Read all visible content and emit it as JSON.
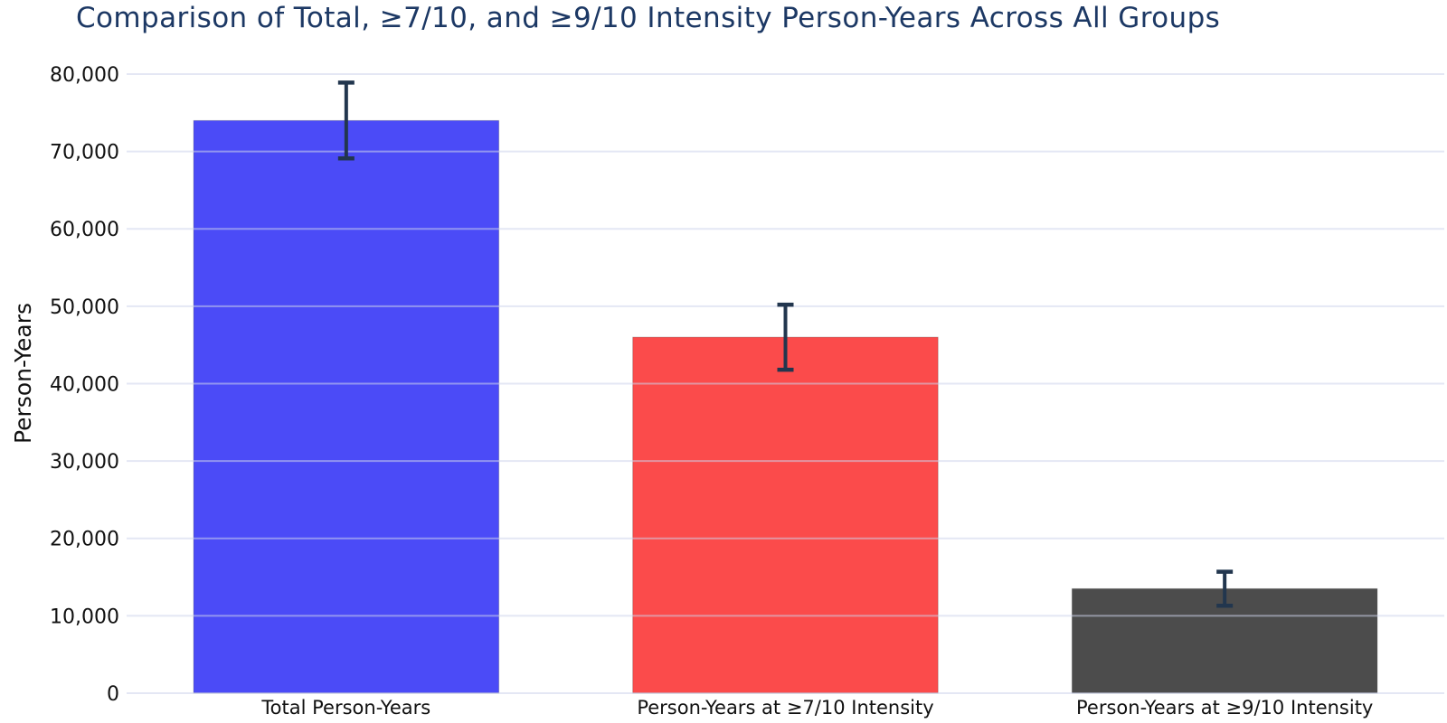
{
  "chart_data": {
    "type": "bar",
    "title": "Comparison of Total, ≥7/10, and ≥9/10 Intensity Person-Years Across All Groups",
    "xlabel": "",
    "ylabel": "Person-Years",
    "categories": [
      "Total Person-Years",
      "Person-Years at ≥7/10 Intensity",
      "Person-Years at ≥9/10 Intensity"
    ],
    "values": [
      74000,
      46000,
      13500
    ],
    "error_plus": [
      4900,
      4200,
      2200
    ],
    "error_minus": [
      4900,
      4200,
      2200
    ],
    "ytick_values": [
      0,
      10000,
      20000,
      30000,
      40000,
      50000,
      60000,
      70000,
      80000
    ],
    "ytick_labels": [
      "0",
      "10,000",
      "20,000",
      "30,000",
      "40,000",
      "50,000",
      "60,000",
      "70,000",
      "80,000"
    ],
    "ylim": [
      0,
      82800
    ],
    "grid": true,
    "legend": false,
    "bar_colors": [
      "#4B4BF7",
      "#FB4B4B",
      "#4C4C4C"
    ],
    "error_bar_color": "#22364E",
    "title_color": "#1C3864",
    "axis_text_color": "#111111",
    "grid_color": "rgba(205,212,235,0.55)"
  }
}
